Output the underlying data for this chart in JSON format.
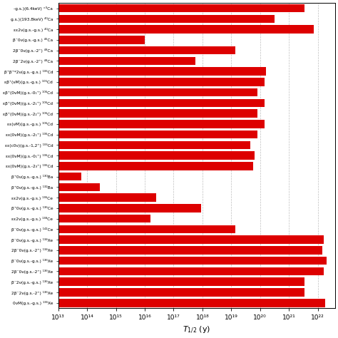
{
  "bar_color": "#dd0000",
  "bar_height": 0.78,
  "xlim_log": [
    13,
    22.6
  ],
  "labels": [
    "-g.s.)(6.4keV) °⁰Ca",
    "g.s.)(193.8keV) ⁴⁰Ca",
    "εε2ν(g.s.-g.s.) ⁴⁰Ca",
    "β⁻0ν(g.s.-g.s.) ⁴⁶Ca",
    "2β⁻0ν(g.s.-2⁺) ⁴⁸Ca",
    "2β⁻2ν(g.s.-2⁺) ⁴⁸Ca",
    "β⁺β⁺*2ν(g.s.-g.s.) ¹⁰⁶Cd",
    "εβ⁺(νM)(g.s.-g.s.) ¹⁰⁶Cd",
    "εβ⁺(0νM)(g.s.-0₁⁺) ¹⁰⁶Cd",
    "εβ⁺(0νM)(g.s.-2₁⁺) ¹⁰⁶Cd",
    "εβ⁺(0νM)(g.s.-2₂⁺) ¹⁰⁶Cd",
    "εε(νM)(g.s.-g.s.) ¹⁰⁶Cd",
    "εε(0νM)(g.s.-2₁⁺) ¹⁰⁶Cd",
    "εε(c0ν)(g.s.-1,2⁺) ¹⁰⁶Cd",
    "εε(0νM)(g.s.-0₁⁺) ¹⁰⁶Cd",
    "εε(0νM)(g.s.-2₃⁺) ¹⁰⁶Cd",
    "β⁺0ν(g.s.-g.s.) ¹³⁰Ba",
    "β⁺0ν(g.s.-g.s.) ¹³²Ba",
    "εε2ν(g.s.-g.s.) ¹³⁶Ce",
    "β⁺0ν(g.s.-g.s.) ¹³⁶Ce",
    "εε2ν(g.s.-g.s.) ¹³⁸Ce",
    "β⁻0ν(g.s.-g.s.) ¹⁴²Ce",
    "β⁻0ν(g.s.-g.s.) ¹³⁴Xe",
    "2β⁻0ν(g.s.-2⁺) ¹³⁴Xe",
    "β⁻0ν(g.s.-g.s.) ¹³⁶Xe",
    "2β⁻0ν(g.s.-2⁺) ¹³⁶Xe",
    "β⁻2ν(g.s.-g.s.) ¹³⁶Xe",
    "2β⁻2ν(g.s.-2⁺) ¹³⁶Xe",
    "0νM(g.s.-g.s.) ¹³⁶Xe"
  ],
  "values_log10": [
    21.55,
    20.5,
    21.85,
    16.0,
    19.15,
    17.75,
    20.2,
    20.15,
    19.9,
    20.15,
    19.9,
    20.15,
    19.9,
    19.65,
    19.8,
    19.75,
    13.8,
    14.45,
    16.4,
    17.95,
    16.2,
    19.15,
    22.2,
    22.15,
    22.3,
    22.2,
    21.55,
    21.55,
    22.25
  ],
  "grid_positions_log10": [
    13,
    14,
    15,
    16,
    17,
    18,
    19,
    20,
    21,
    22
  ],
  "tick_labels": [
    "10¹³",
    "10¹⁴",
    "10¹⁵",
    "10¹⁶",
    "10¹⁷",
    "10¹⁸",
    "10¹⁹",
    "10²⁰",
    "10²¹",
    "10²²"
  ]
}
